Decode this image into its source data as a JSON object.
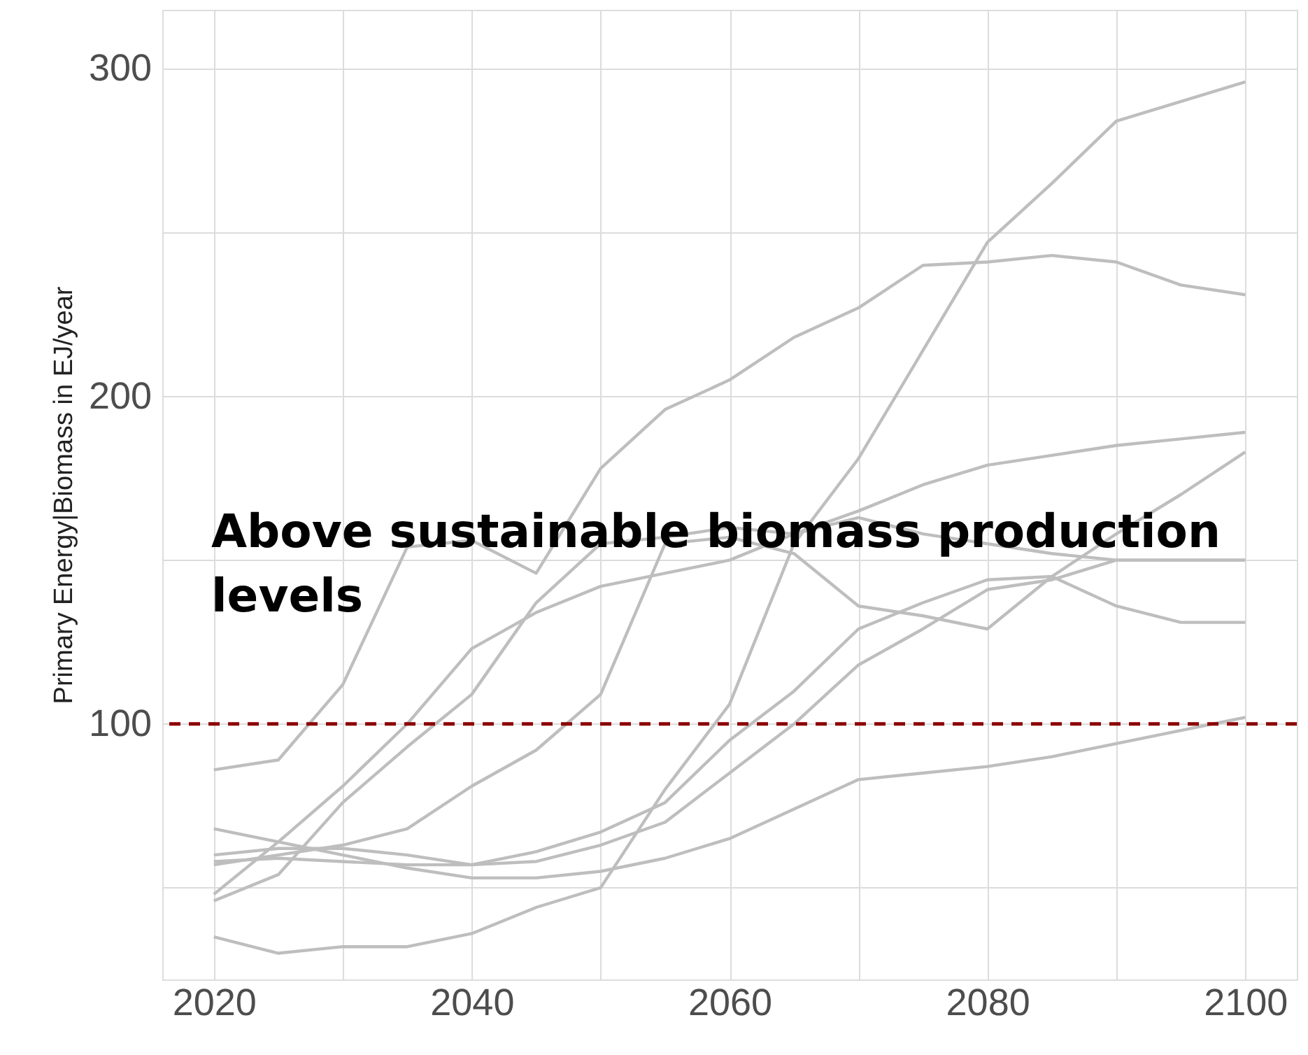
{
  "chart_data": {
    "type": "line",
    "ylabel": "Primary Energy|Biomass in EJ/year",
    "x": [
      2020,
      2025,
      2030,
      2035,
      2040,
      2045,
      2050,
      2055,
      2060,
      2065,
      2070,
      2075,
      2080,
      2085,
      2090,
      2095,
      2100
    ],
    "series": [
      {
        "color": "#bebebe",
        "values": [
          35,
          30,
          32,
          32,
          36,
          44,
          50,
          80,
          106,
          155,
          181,
          214,
          247,
          265,
          284,
          290,
          296
        ]
      },
      {
        "color": "#bebebe",
        "values": [
          86,
          89,
          112,
          154,
          156,
          146,
          178,
          196,
          205,
          218,
          227,
          240,
          241,
          243,
          241,
          234,
          231
        ]
      },
      {
        "color": "#bebebe",
        "values": [
          57,
          60,
          63,
          68,
          81,
          92,
          109,
          155,
          157,
          152,
          136,
          133,
          129,
          145,
          158,
          170,
          183
        ]
      },
      {
        "color": "#bebebe",
        "values": [
          48,
          64,
          81,
          100,
          123,
          134,
          142,
          146,
          150,
          158,
          165,
          173,
          179,
          182,
          185,
          187,
          189
        ]
      },
      {
        "color": "#bebebe",
        "values": [
          46,
          54,
          76,
          93,
          109,
          137,
          155,
          157,
          160,
          158,
          163,
          158,
          155,
          152,
          150,
          150,
          150
        ]
      },
      {
        "color": "#bebebe",
        "values": [
          58,
          59,
          58,
          57,
          57,
          61,
          67,
          76,
          95,
          110,
          129,
          137,
          144,
          145,
          136,
          131,
          131
        ]
      },
      {
        "color": "#bebebe",
        "values": [
          60,
          62,
          62,
          60,
          57,
          58,
          63,
          70,
          85,
          100,
          118,
          129,
          141,
          144,
          150,
          150,
          150
        ]
      },
      {
        "color": "#bebebe",
        "values": [
          68,
          64,
          60,
          56,
          53,
          53,
          55,
          59,
          65,
          74,
          83,
          85,
          87,
          90,
          94,
          98,
          102
        ]
      }
    ],
    "xlim": [
      2016,
      2104
    ],
    "xticks": [
      2020,
      {
        "value": 2030,
        "label": null
      },
      2040,
      {
        "value": 2050,
        "label": null
      },
      2060,
      {
        "value": 2070,
        "label": null
      },
      2080,
      {
        "value": 2090,
        "label": null
      },
      2100
    ],
    "ylim": [
      22,
      318
    ],
    "yticks": [
      {
        "value": 50,
        "label": null
      },
      100,
      {
        "value": 150,
        "label": null
      },
      200,
      {
        "value": 250,
        "label": null
      },
      300
    ],
    "ref_lines": [
      {
        "axis": "y",
        "value": 100,
        "color": "#8b0000",
        "line_style": "dashed"
      }
    ],
    "annotations": [
      "Above sustainable biomass production levels"
    ],
    "grid": true,
    "line_style": "solid",
    "marker": "none"
  }
}
